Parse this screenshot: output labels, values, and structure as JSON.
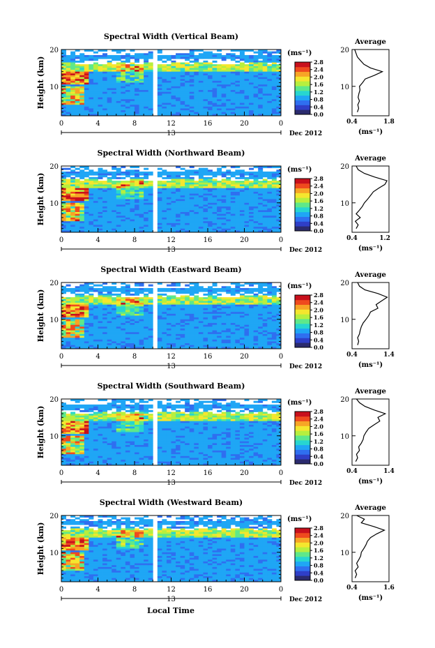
{
  "figure": {
    "xlabel": "Local Time"
  },
  "colorbar": {
    "unit": "(ms⁻¹)",
    "ticks": [
      "2.8",
      "2.4",
      "2.0",
      "1.6",
      "1.2",
      "0.8",
      "0.4",
      "0.0"
    ],
    "colors": [
      "#2b2b6e",
      "#2f3fc8",
      "#2f6ff0",
      "#1fa6f5",
      "#27d6d0",
      "#5ee88a",
      "#b7ef3e",
      "#f5e62e",
      "#f7a526",
      "#ef4a1e",
      "#c8101c"
    ]
  },
  "chart_data": [
    {
      "type": "heatmap",
      "title": "Spectral Width (Vertical Beam)",
      "ylabel": "Height (km)",
      "yticks": [
        "20",
        "10"
      ],
      "ylim": [
        2,
        20
      ],
      "xticks": [
        "0",
        "4",
        "8",
        "12",
        "16",
        "20",
        "0"
      ],
      "xlim": [
        0,
        24
      ],
      "date_label": "13",
      "month_label": "Dec 2012",
      "data_gap_time": 10.3,
      "profile": {
        "title": "Average",
        "xlabel": "(ms⁻¹)",
        "xticks": [
          "0.4",
          "1.8"
        ],
        "xlim": [
          0.4,
          1.8
        ],
        "yticks": [
          "20",
          "10"
        ],
        "ylim": [
          2,
          20
        ],
        "height": [
          3,
          4,
          5,
          6,
          7,
          8,
          9,
          10,
          11,
          12,
          13,
          14,
          15,
          16,
          17,
          18,
          19,
          20
        ],
        "value": [
          0.6,
          0.65,
          0.62,
          0.68,
          0.63,
          0.66,
          0.7,
          0.68,
          0.8,
          0.9,
          1.25,
          1.55,
          1.1,
          0.85,
          0.72,
          0.6,
          0.55,
          0.5
        ]
      }
    },
    {
      "type": "heatmap",
      "title": "Spectral Width (Northward Beam)",
      "ylabel": "Height (km)",
      "yticks": [
        "20",
        "10"
      ],
      "ylim": [
        2,
        20
      ],
      "xticks": [
        "0",
        "4",
        "8",
        "12",
        "16",
        "20",
        "0"
      ],
      "xlim": [
        0,
        24
      ],
      "date_label": "13",
      "month_label": "Dec 2012",
      "data_gap_time": 10.3,
      "profile": {
        "title": "Average",
        "xlabel": "(ms⁻¹)",
        "xticks": [
          "0.4",
          "1.2"
        ],
        "xlim": [
          0.4,
          1.3
        ],
        "yticks": [
          "20",
          "10"
        ],
        "ylim": [
          2,
          20
        ],
        "height": [
          3,
          4,
          5,
          6,
          7,
          8,
          9,
          10,
          11,
          12,
          13,
          14,
          15,
          16,
          17,
          18,
          19,
          20
        ],
        "value": [
          0.5,
          0.55,
          0.48,
          0.6,
          0.5,
          0.58,
          0.65,
          0.7,
          0.78,
          0.85,
          0.92,
          1.05,
          1.2,
          1.25,
          0.95,
          0.7,
          0.55,
          0.5
        ]
      }
    },
    {
      "type": "heatmap",
      "title": "Spectral Width (Eastward Beam)",
      "ylabel": "Height (km)",
      "yticks": [
        "20",
        "10"
      ],
      "ylim": [
        2,
        20
      ],
      "xticks": [
        "0",
        "4",
        "8",
        "12",
        "16",
        "20",
        "0"
      ],
      "xlim": [
        0,
        24
      ],
      "date_label": "13",
      "month_label": "Dec 2012",
      "data_gap_time": 10.3,
      "profile": {
        "title": "Average",
        "xlabel": "(ms⁻¹)",
        "xticks": [
          "0.4",
          "1.4"
        ],
        "xlim": [
          0.4,
          1.4
        ],
        "yticks": [
          "20",
          "10"
        ],
        "ylim": [
          2,
          20
        ],
        "height": [
          3,
          4,
          5,
          6,
          7,
          8,
          9,
          10,
          11,
          12,
          13,
          14,
          15,
          16,
          17,
          18,
          19,
          20
        ],
        "value": [
          0.55,
          0.58,
          0.55,
          0.6,
          0.62,
          0.65,
          0.7,
          0.78,
          0.85,
          0.9,
          1.1,
          1.05,
          1.2,
          1.35,
          1.1,
          0.75,
          0.6,
          0.55
        ]
      }
    },
    {
      "type": "heatmap",
      "title": "Spectral Width (Southward Beam)",
      "ylabel": "Height (km)",
      "yticks": [
        "20",
        "10"
      ],
      "ylim": [
        2,
        20
      ],
      "xticks": [
        "0",
        "4",
        "8",
        "12",
        "16",
        "20",
        "0"
      ],
      "xlim": [
        0,
        24
      ],
      "date_label": "13",
      "month_label": "Dec 2012",
      "data_gap_time": 10.3,
      "profile": {
        "title": "Average",
        "xlabel": "(ms⁻¹)",
        "xticks": [
          "0.4",
          "1.4"
        ],
        "xlim": [
          0.4,
          1.4
        ],
        "yticks": [
          "20",
          "10"
        ],
        "ylim": [
          2,
          20
        ],
        "height": [
          3,
          4,
          5,
          6,
          7,
          8,
          9,
          10,
          11,
          12,
          13,
          14,
          15,
          16,
          17,
          18,
          19,
          20
        ],
        "value": [
          0.5,
          0.55,
          0.52,
          0.6,
          0.58,
          0.65,
          0.7,
          0.72,
          0.78,
          0.85,
          1.0,
          1.15,
          1.1,
          1.3,
          1.0,
          0.75,
          0.6,
          0.52
        ]
      }
    },
    {
      "type": "heatmap",
      "title": "Spectral Width (Westward Beam)",
      "ylabel": "Height (km)",
      "yticks": [
        "20",
        "10"
      ],
      "ylim": [
        2,
        20
      ],
      "xticks": [
        "0",
        "4",
        "8",
        "12",
        "16",
        "20",
        "0"
      ],
      "xlim": [
        0,
        24
      ],
      "date_label": "13",
      "month_label": "Dec 2012",
      "data_gap_time": 10.3,
      "profile": {
        "title": "Average",
        "xlabel": "(ms⁻¹)",
        "xticks": [
          "0.4",
          "1.6"
        ],
        "xlim": [
          0.4,
          1.6
        ],
        "yticks": [
          "20",
          "10"
        ],
        "ylim": [
          2,
          20
        ],
        "height": [
          3,
          4,
          5,
          6,
          7,
          8,
          9,
          10,
          11,
          12,
          13,
          14,
          15,
          16,
          17,
          18,
          19,
          20
        ],
        "value": [
          0.5,
          0.55,
          0.5,
          0.6,
          0.55,
          0.62,
          0.68,
          0.7,
          0.78,
          0.85,
          0.9,
          1.0,
          1.2,
          1.45,
          1.1,
          0.7,
          0.8,
          0.55
        ]
      }
    }
  ]
}
